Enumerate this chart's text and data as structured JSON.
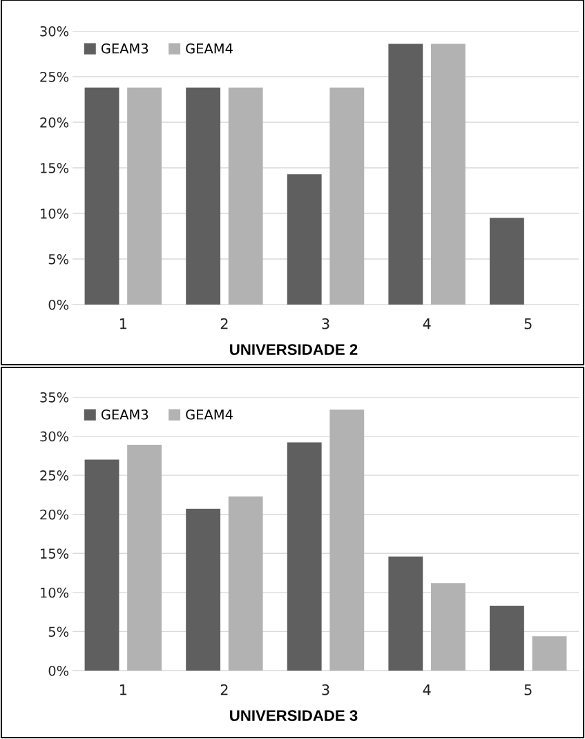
{
  "chart_data": [
    {
      "type": "bar",
      "title": "UNIVERSIDADE 2",
      "categories": [
        "1",
        "2",
        "3",
        "4",
        "5"
      ],
      "series": [
        {
          "name": "GEAM3",
          "color": "#5f5f5f",
          "values": [
            23.8,
            23.8,
            14.3,
            28.6,
            9.5
          ]
        },
        {
          "name": "GEAM4",
          "color": "#b2b2b2",
          "values": [
            23.8,
            23.8,
            23.8,
            28.6,
            0
          ]
        }
      ],
      "ylim": [
        0,
        30
      ],
      "yticks": [
        {
          "value": 0,
          "label": "0%"
        },
        {
          "value": 5,
          "label": "5%"
        },
        {
          "value": 10,
          "label": "10%"
        },
        {
          "value": 15,
          "label": "15%"
        },
        {
          "value": 20,
          "label": "20%"
        },
        {
          "value": 25,
          "label": "25%"
        },
        {
          "value": 30,
          "label": "30%"
        }
      ],
      "grid": "y",
      "legend": "top left"
    },
    {
      "type": "bar",
      "title": "UNIVERSIDADE 3",
      "categories": [
        "1",
        "2",
        "3",
        "4",
        "5"
      ],
      "series": [
        {
          "name": "GEAM3",
          "color": "#5f5f5f",
          "values": [
            27.0,
            20.7,
            29.2,
            14.6,
            8.3
          ]
        },
        {
          "name": "GEAM4",
          "color": "#b2b2b2",
          "values": [
            28.9,
            22.3,
            33.4,
            11.2,
            4.4
          ]
        }
      ],
      "ylim": [
        0,
        35
      ],
      "yticks": [
        {
          "value": 0,
          "label": "0%"
        },
        {
          "value": 5,
          "label": "5%"
        },
        {
          "value": 10,
          "label": "10%"
        },
        {
          "value": 15,
          "label": "15%"
        },
        {
          "value": 20,
          "label": "20%"
        },
        {
          "value": 25,
          "label": "25%"
        },
        {
          "value": 30,
          "label": "30%"
        },
        {
          "value": 35,
          "label": "35%"
        }
      ],
      "grid": "y",
      "legend": "top left"
    }
  ]
}
